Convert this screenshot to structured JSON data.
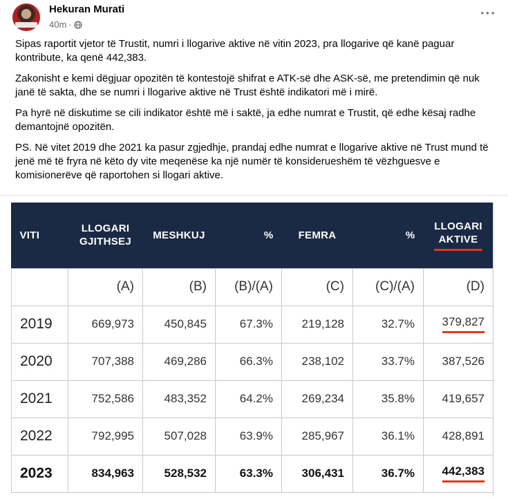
{
  "post": {
    "author": "Hekuran Murati",
    "time": "40m",
    "separator": "·",
    "paragraphs": [
      "Sipas raportit vjetor të Trustit, numri i llogarive aktive në vitin 2023, pra llogarive që kanë paguar kontribute, ka qenë 442,383.",
      "Zakonisht e kemi dëgjuar opozitën të kontestojë shifrat e ATK-së dhe ASK-së, me pretendimin që nuk janë të sakta, dhe se numri i llogarive aktive në Trust është indikatori më i mirë.",
      "Pa hyrë në diskutime se cili indikator është më i saktë, ja edhe numrat e Trustit, që edhe kësaj radhe demantojnë opozitën.",
      "PS. Në vitet 2019 dhe 2021 ka pasur zgjedhje, prandaj edhe numrat e llogarive aktive në Trust mund të jenë më të fryra në këto dy vite meqenëse ka një numër të konsiderueshëm të vëzhguesve e komisionerëve që raportohen si llogari aktive."
    ],
    "more_icon": "more-horizontal-icon",
    "globe_icon": "globe-icon"
  },
  "table": {
    "headers": [
      "VITI",
      "LLOGARI GJITHSEJ",
      "MESHKUJ",
      "%",
      "FEMRA",
      "%",
      "LLOGARI AKTIVE"
    ],
    "letters": [
      "",
      "(A)",
      "(B)",
      "(B)/(A)",
      "(C)",
      "(C)/(A)",
      "(D)"
    ],
    "rows": [
      [
        "2019",
        "669,973",
        "450,845",
        "67.3%",
        "219,128",
        "32.7%",
        "379,827"
      ],
      [
        "2020",
        "707,388",
        "469,286",
        "66.3%",
        "238,102",
        "33.7%",
        "387,526"
      ],
      [
        "2021",
        "752,586",
        "483,352",
        "64.2%",
        "269,234",
        "35.8%",
        "419,657"
      ],
      [
        "2022",
        "792,995",
        "507,028",
        "63.9%",
        "285,967",
        "36.1%",
        "428,891"
      ],
      [
        "2023",
        "834,963",
        "528,532",
        "63.3%",
        "306,431",
        "36.7%",
        "442,383"
      ]
    ],
    "header_bg": "#1b2a44",
    "highlight_color": "#e3391b"
  }
}
